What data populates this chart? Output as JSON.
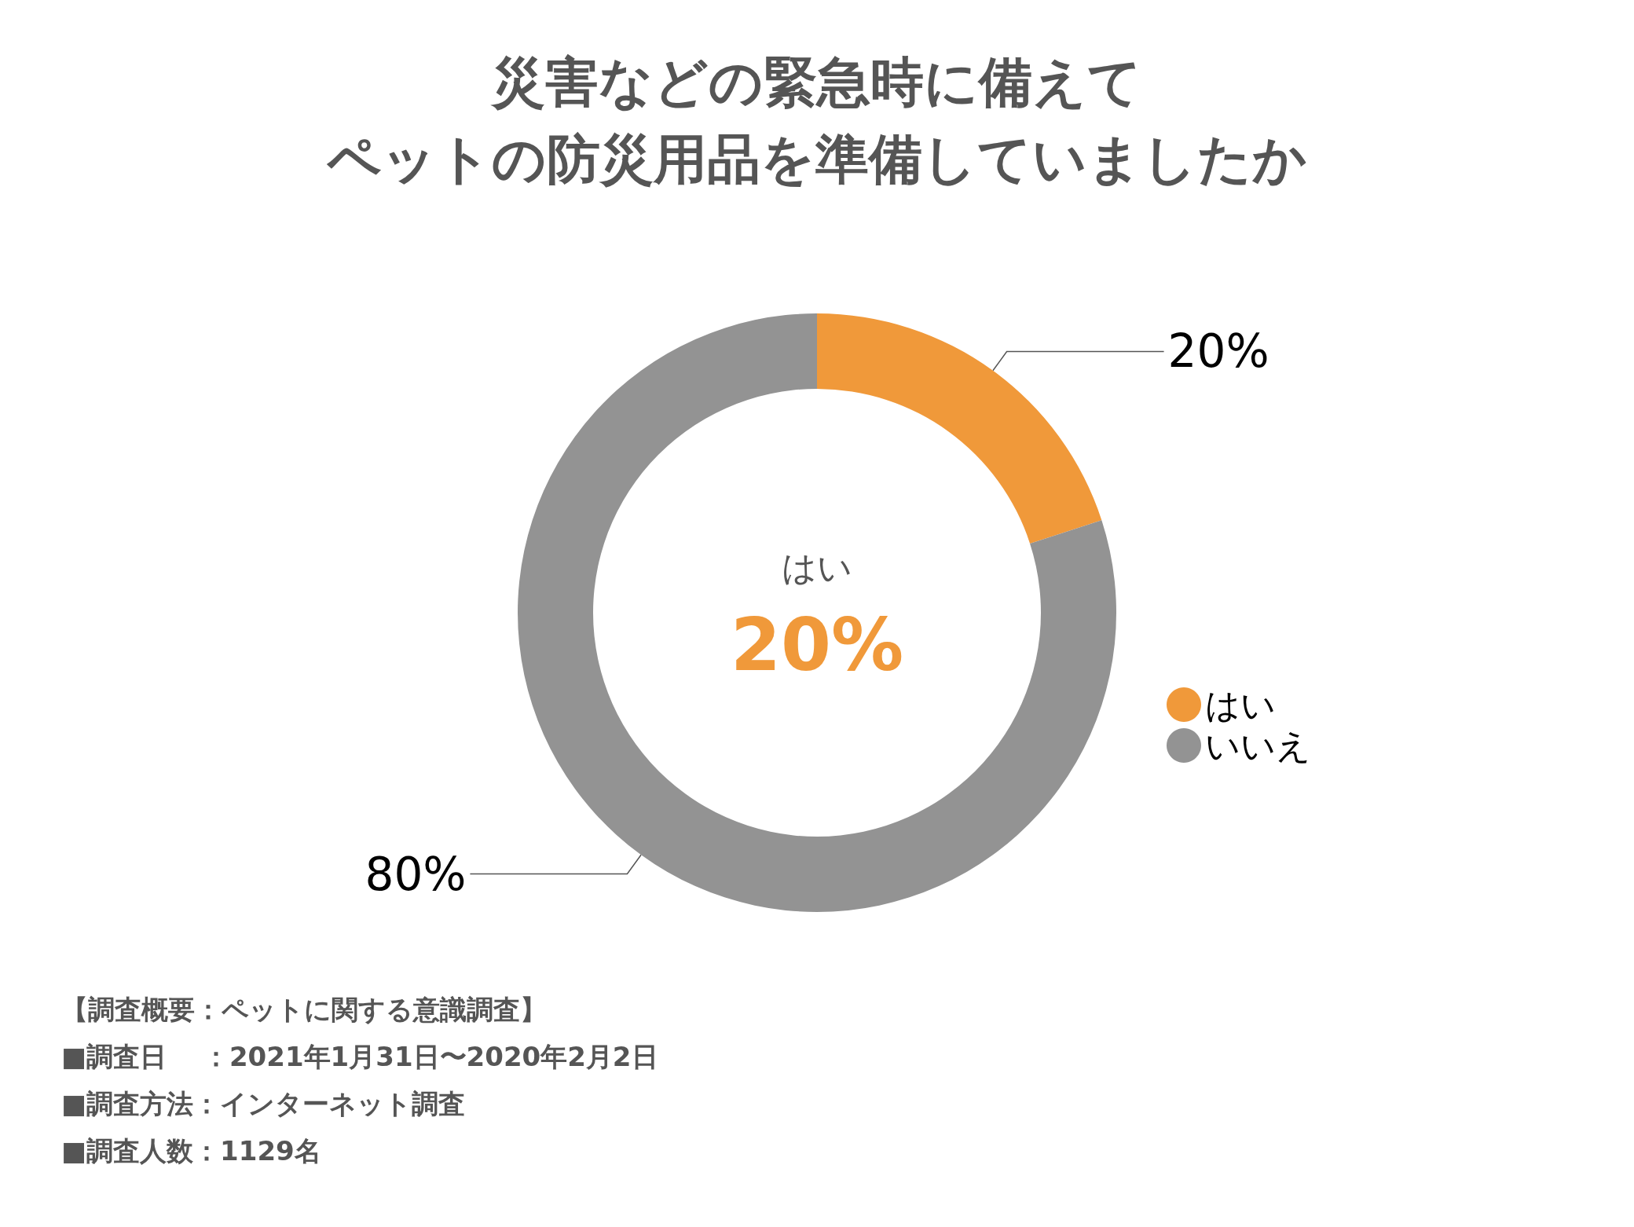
{
  "chart_data": {
    "type": "donut",
    "title": "災害などの緊急時に備えて",
    "subtitle": "ペットの防災用品を準備していましたか",
    "categories": [
      "はい",
      "いいえ"
    ],
    "values": [
      20,
      80
    ],
    "colors": [
      "#f0993a",
      "#939393"
    ],
    "value_labels": [
      "20%",
      "80%"
    ],
    "legend": "right",
    "annotations": [
      "はい",
      "20%",
      "【調査概要：ペットに関する意識調査】",
      "■調査日　 ：2021年1月31日〜2020年2月2日",
      "■調査方法：インターネット調査",
      "■調査人数：1129名"
    ]
  }
}
